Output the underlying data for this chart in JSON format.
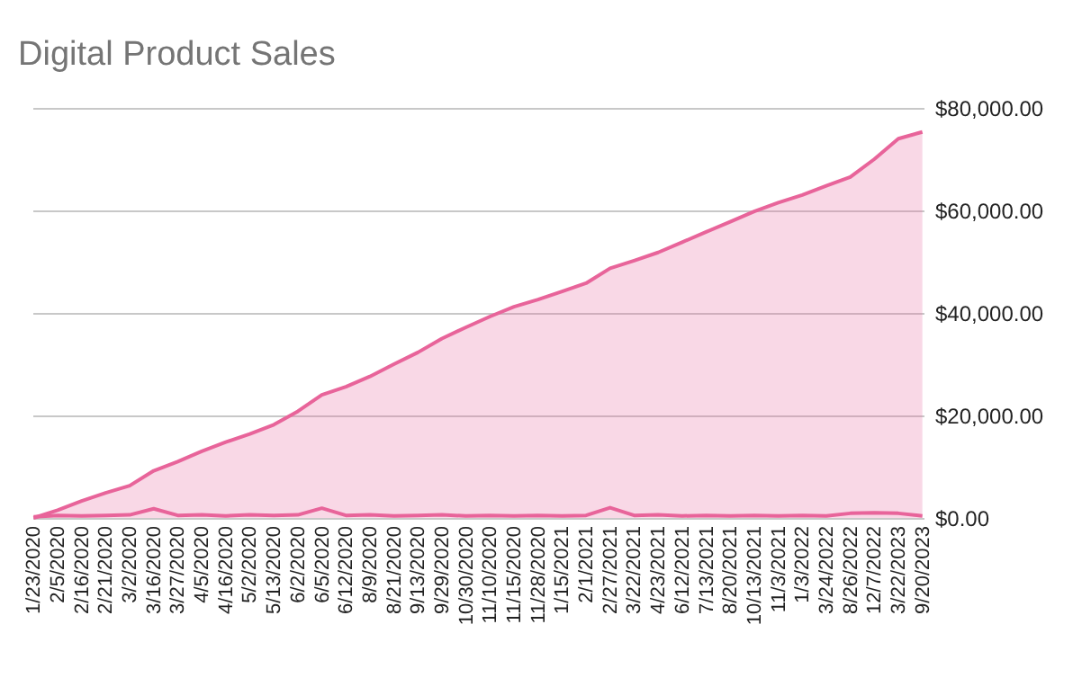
{
  "chart_data": {
    "type": "area",
    "title": "Digital Product Sales",
    "categories": [
      "1/23/2020",
      "2/5/2020",
      "2/16/2020",
      "2/21/2020",
      "3/2/2020",
      "3/16/2020",
      "3/27/2020",
      "4/5/2020",
      "4/16/2020",
      "5/2/2020",
      "5/13/2020",
      "6/2/2020",
      "6/5/2020",
      "6/12/2020",
      "8/9/2020",
      "8/21/2020",
      "9/13/2020",
      "9/29/2020",
      "10/30/2020",
      "11/10/2020",
      "11/15/2020",
      "11/28/2020",
      "1/15/2021",
      "2/1/2021",
      "2/27/2021",
      "3/22/2021",
      "4/23/2021",
      "6/12/2021",
      "7/13/2021",
      "8/20/2021",
      "10/13/2021",
      "11/3/2021",
      "1/3/2022",
      "3/24/2022",
      "8/26/2022",
      "12/7/2022",
      "3/22/2023",
      "9/20/2023"
    ],
    "series": [
      {
        "color": "#e8649a",
        "values": [
          0,
          1500,
          3300,
          4900,
          6300,
          9200,
          11000,
          13000,
          14800,
          16400,
          18200,
          20800,
          24000,
          25600,
          27600,
          30000,
          32300,
          35000,
          37200,
          39300,
          41200,
          42600,
          44200,
          45800,
          48700,
          50200,
          51800,
          53800,
          55800,
          57800,
          59800,
          61500,
          63000,
          64800,
          66500,
          70000,
          74000,
          75300
        ]
      },
      {
        "type": "line",
        "color": "#e8649a",
        "values": [
          200,
          500,
          400,
          500,
          600,
          1800,
          500,
          600,
          400,
          600,
          500,
          600,
          1900,
          500,
          600,
          400,
          500,
          600,
          400,
          500,
          400,
          500,
          400,
          500,
          2000,
          500,
          600,
          400,
          500,
          400,
          500,
          400,
          500,
          400,
          900,
          1000,
          900,
          400
        ]
      }
    ],
    "ylim": [
      0,
      80000
    ],
    "yticks": [
      {
        "value": 0,
        "label": "$0.00"
      },
      {
        "value": 20000,
        "label": "$20,000.00"
      },
      {
        "value": 40000,
        "label": "$40,000.00"
      },
      {
        "value": 60000,
        "label": "$60,000.00"
      },
      {
        "value": 80000,
        "label": "$80,000.00"
      }
    ],
    "grid": "y"
  }
}
